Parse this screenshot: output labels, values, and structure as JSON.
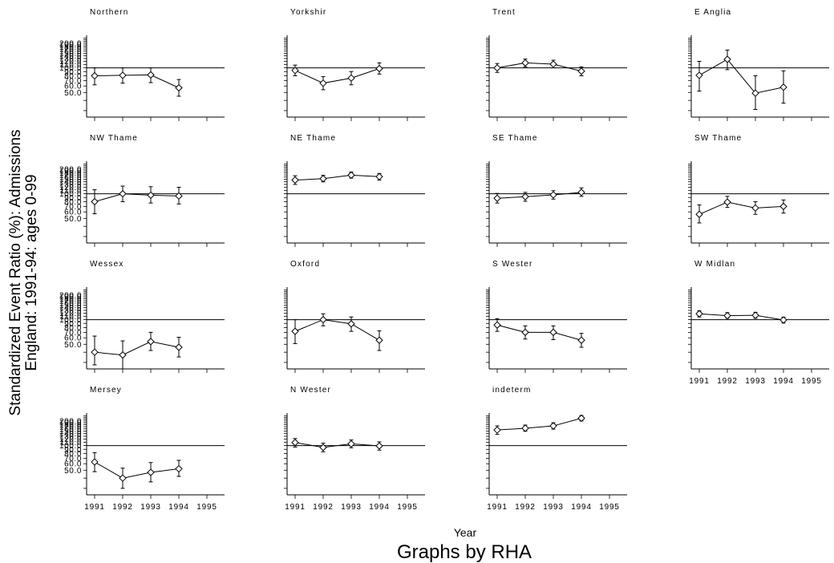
{
  "chart_data": {
    "type": "line",
    "layout": "small-multiples",
    "ylabel_line1": "Standardized Event Ratio (%): Admissions",
    "ylabel_line2": "England: 1991-94: ages 0-99",
    "xlabel": "Year",
    "by_label": "Graphs by RHA",
    "x_ticks": [
      1991,
      1992,
      1993,
      1994,
      1995
    ],
    "xlim": [
      1991,
      1995
    ],
    "y_scale": "log",
    "ylim": [
      25,
      250
    ],
    "y_tick_labels": [
      "200.0",
      "190.0",
      "180.0",
      "170.0",
      "160.0",
      "150.0",
      "140.0",
      "130.0",
      "120.0",
      "110.0",
      "100.0",
      "90.0",
      "80.0",
      "70.0",
      "60.0",
      "50.0"
    ],
    "y_label_values": [
      200,
      190,
      180,
      170,
      160,
      150,
      140,
      130,
      120,
      110,
      100,
      90,
      80,
      70,
      60,
      50
    ],
    "y_minor_ticks": [
      30,
      40,
      50,
      60,
      70,
      80,
      90,
      100,
      110,
      120,
      130,
      140,
      150,
      160,
      170,
      180,
      190,
      200,
      210,
      220,
      230
    ],
    "reference_line": 100,
    "markers": "hollow diamond with error bars",
    "panels": [
      {
        "title": "Northern",
        "values": [
          80,
          81,
          82,
          57
        ],
        "lower": [
          62,
          65,
          66,
          45
        ],
        "upper": [
          100,
          100,
          100,
          72
        ]
      },
      {
        "title": "Yorkshir",
        "values": [
          93,
          65,
          75,
          98
        ],
        "lower": [
          80,
          54,
          62,
          84
        ],
        "upper": [
          108,
          78,
          90,
          115
        ]
      },
      {
        "title": "Trent",
        "values": [
          100,
          115,
          111,
          91
        ],
        "lower": [
          88,
          103,
          100,
          80
        ],
        "upper": [
          113,
          128,
          124,
          103
        ]
      },
      {
        "title": "E Anglia",
        "values": [
          81,
          127,
          49,
          58
        ],
        "lower": [
          52,
          95,
          31,
          37
        ],
        "upper": [
          120,
          165,
          80,
          92
        ]
      },
      {
        "title": "NW Thame",
        "values": [
          80,
          100,
          96,
          94
        ],
        "lower": [
          57,
          80,
          77,
          75
        ],
        "upper": [
          112,
          124,
          122,
          120
        ]
      },
      {
        "title": "NE Thame",
        "values": [
          147,
          153,
          169,
          162
        ],
        "lower": [
          130,
          140,
          155,
          147
        ],
        "upper": [
          166,
          168,
          184,
          177
        ]
      },
      {
        "title": "SE Thame",
        "values": [
          88,
          92,
          97,
          104
        ],
        "lower": [
          77,
          81,
          86,
          93
        ],
        "upper": [
          101,
          104,
          109,
          118
        ]
      },
      {
        "title": "SW Thame",
        "values": [
          56,
          79,
          67,
          70
        ],
        "lower": [
          44,
          68,
          56,
          58
        ],
        "upper": [
          73,
          93,
          80,
          84
        ]
      },
      {
        "title": "Wessex",
        "values": [
          40,
          37,
          54,
          46
        ],
        "lower": [
          28,
          25,
          42,
          35
        ],
        "upper": [
          63,
          55,
          70,
          61
        ]
      },
      {
        "title": "Oxford",
        "values": [
          72,
          100,
          89,
          56
        ],
        "lower": [
          51,
          84,
          72,
          42
        ],
        "upper": [
          100,
          118,
          108,
          73
        ]
      },
      {
        "title": "S Wester",
        "values": [
          86,
          70,
          70,
          56
        ],
        "lower": [
          72,
          58,
          57,
          46
        ],
        "upper": [
          103,
          84,
          84,
          68
        ]
      },
      {
        "title": "W Midlan",
        "values": [
          118,
          112,
          113,
          99
        ],
        "lower": [
          108,
          104,
          104,
          91
        ],
        "upper": [
          128,
          122,
          123,
          107
        ]
      },
      {
        "title": "Mersey",
        "values": [
          63,
          40,
          47,
          52
        ],
        "lower": [
          48,
          30,
          36,
          42
        ],
        "upper": [
          82,
          53,
          62,
          66
        ]
      },
      {
        "title": "N Wester",
        "values": [
          109,
          95,
          105,
          99
        ],
        "lower": [
          96,
          84,
          94,
          88
        ],
        "upper": [
          122,
          107,
          117,
          111
        ]
      },
      {
        "title": "indeterm",
        "values": [
          155,
          163,
          174,
          216
        ],
        "lower": [
          137,
          150,
          159,
          200
        ],
        "upper": [
          174,
          178,
          190,
          233
        ]
      }
    ]
  }
}
